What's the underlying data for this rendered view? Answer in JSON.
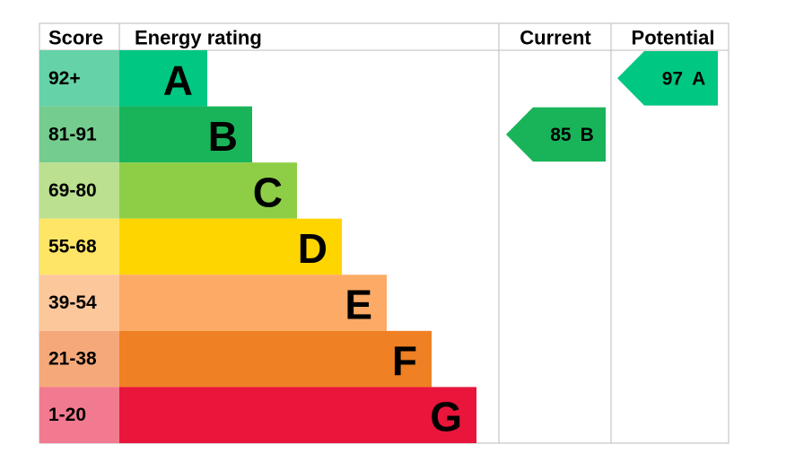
{
  "header": {
    "score": "Score",
    "rating": "Energy rating",
    "current": "Current",
    "potential": "Potential"
  },
  "bands": [
    {
      "score": "92+",
      "letter": "A"
    },
    {
      "score": "81-91",
      "letter": "B"
    },
    {
      "score": "69-80",
      "letter": "C"
    },
    {
      "score": "55-68",
      "letter": "D"
    },
    {
      "score": "39-54",
      "letter": "E"
    },
    {
      "score": "21-38",
      "letter": "F"
    },
    {
      "score": "1-20",
      "letter": "G"
    }
  ],
  "current": {
    "value": 85,
    "letter": "B"
  },
  "potential": {
    "value": 97,
    "letter": "A"
  }
}
